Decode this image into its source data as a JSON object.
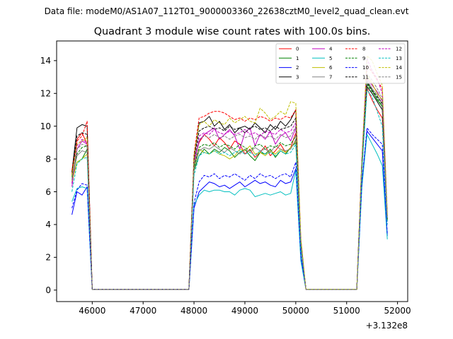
{
  "suptitle": "Data file: modeM0/AS1A07_112T01_9000003360_22638cztM0_level2_quad_clean.evt",
  "chart_data": {
    "type": "line",
    "title": "Quadrant 3 module wise count rates with 100.0s bins.",
    "xlabel": "",
    "ylabel": "",
    "x_offset_label": "+3.132e8",
    "x_ticks": [
      46000,
      47000,
      48000,
      49000,
      50000,
      51000,
      52000
    ],
    "y_ticks": [
      0,
      2,
      4,
      6,
      8,
      10,
      12,
      14
    ],
    "xlim": [
      45300,
      52200
    ],
    "ylim": [
      -0.7,
      15.2
    ],
    "grid": false,
    "legend_position": "top-right",
    "legend_columns": 4,
    "x": [
      45600,
      45700,
      45800,
      45900,
      46000,
      46100,
      46200,
      46300,
      46400,
      46500,
      46600,
      46700,
      46800,
      46900,
      47000,
      47100,
      47200,
      47300,
      47400,
      47500,
      47600,
      47700,
      47800,
      47900,
      48000,
      48100,
      48200,
      48300,
      48400,
      48500,
      48600,
      48700,
      48800,
      48900,
      49000,
      49100,
      49200,
      49300,
      49400,
      49500,
      49600,
      49700,
      49800,
      49900,
      50000,
      50100,
      50200,
      50300,
      50400,
      50500,
      50600,
      50700,
      50800,
      50900,
      51000,
      51100,
      51200,
      51300,
      51400,
      51500,
      51600,
      51700,
      51800
    ],
    "series": [
      {
        "name": "0",
        "color": "#ff0000",
        "dash": false,
        "values": [
          7.1,
          9.2,
          9.6,
          8.9,
          0.05,
          0.05,
          0.05,
          0.05,
          0.05,
          0.05,
          0.05,
          0.05,
          0.05,
          0.05,
          0.05,
          0.05,
          0.05,
          0.05,
          0.05,
          0.05,
          0.05,
          0.05,
          0.05,
          0.05,
          7.9,
          9.0,
          9.5,
          9.2,
          8.8,
          9.3,
          9.0,
          8.6,
          9.1,
          8.9,
          8.3,
          8.6,
          8.1,
          8.4,
          8.8,
          8.2,
          8.5,
          8.9,
          8.4,
          8.7,
          9.6,
          2.7,
          0.05,
          0.05,
          0.05,
          0.05,
          0.05,
          0.05,
          0.05,
          0.05,
          0.05,
          0.05,
          0.05,
          7.8,
          12.3,
          11.6,
          11.0,
          10.5,
          4.3
        ]
      },
      {
        "name": "1",
        "color": "#008000",
        "dash": false,
        "values": [
          6.7,
          7.8,
          8.0,
          8.6,
          0.05,
          0.05,
          0.05,
          0.05,
          0.05,
          0.05,
          0.05,
          0.05,
          0.05,
          0.05,
          0.05,
          0.05,
          0.05,
          0.05,
          0.05,
          0.05,
          0.05,
          0.05,
          0.05,
          0.05,
          7.3,
          8.2,
          8.6,
          8.3,
          8.6,
          8.4,
          8.7,
          8.5,
          8.1,
          8.4,
          8.6,
          8.2,
          7.9,
          8.4,
          8.3,
          8.6,
          8.1,
          8.5,
          8.3,
          8.7,
          9.0,
          2.6,
          0.05,
          0.05,
          0.05,
          0.05,
          0.05,
          0.05,
          0.05,
          0.05,
          0.05,
          0.05,
          0.05,
          7.3,
          12.6,
          12.2,
          11.6,
          11.2,
          4.2
        ]
      },
      {
        "name": "2",
        "color": "#0000ff",
        "dash": false,
        "values": [
          4.6,
          6.0,
          5.8,
          6.3,
          0.05,
          0.05,
          0.05,
          0.05,
          0.05,
          0.05,
          0.05,
          0.05,
          0.05,
          0.05,
          0.05,
          0.05,
          0.05,
          0.05,
          0.05,
          0.05,
          0.05,
          0.05,
          0.05,
          0.05,
          5.0,
          6.0,
          6.3,
          6.6,
          6.5,
          6.3,
          6.4,
          6.2,
          6.4,
          6.6,
          6.3,
          6.5,
          6.7,
          6.5,
          6.6,
          6.4,
          6.3,
          6.7,
          6.5,
          6.6,
          7.4,
          2.0,
          0.05,
          0.05,
          0.05,
          0.05,
          0.05,
          0.05,
          0.05,
          0.05,
          0.05,
          0.05,
          0.05,
          6.5,
          9.7,
          9.3,
          8.9,
          8.5,
          3.3
        ]
      },
      {
        "name": "3",
        "color": "#000000",
        "dash": false,
        "values": [
          7.2,
          9.9,
          10.1,
          10.0,
          0.05,
          0.05,
          0.05,
          0.05,
          0.05,
          0.05,
          0.05,
          0.05,
          0.05,
          0.05,
          0.05,
          0.05,
          0.05,
          0.05,
          0.05,
          0.05,
          0.05,
          0.05,
          0.05,
          0.05,
          8.1,
          10.2,
          10.3,
          10.6,
          10.0,
          10.3,
          9.8,
          10.1,
          9.6,
          9.9,
          10.0,
          9.8,
          10.2,
          9.9,
          9.6,
          10.1,
          9.8,
          10.3,
          10.0,
          10.4,
          11.0,
          3.0,
          0.05,
          0.05,
          0.05,
          0.05,
          0.05,
          0.05,
          0.05,
          0.05,
          0.05,
          0.05,
          0.05,
          8.0,
          12.4,
          12.0,
          11.5,
          11.0,
          4.5
        ]
      },
      {
        "name": "4",
        "color": "#c000c0",
        "dash": false,
        "values": [
          6.3,
          8.6,
          9.1,
          8.9,
          0.05,
          0.05,
          0.05,
          0.05,
          0.05,
          0.05,
          0.05,
          0.05,
          0.05,
          0.05,
          0.05,
          0.05,
          0.05,
          0.05,
          0.05,
          0.05,
          0.05,
          0.05,
          0.05,
          0.05,
          7.6,
          9.1,
          9.5,
          9.7,
          9.9,
          9.2,
          9.5,
          9.8,
          9.4,
          8.6,
          9.6,
          9.9,
          8.8,
          9.5,
          9.2,
          9.7,
          8.9,
          9.4,
          9.6,
          9.1,
          9.9,
          2.8,
          0.05,
          0.05,
          0.05,
          0.05,
          0.05,
          0.05,
          0.05,
          0.05,
          0.05,
          0.05,
          0.05,
          7.9,
          12.9,
          12.5,
          12.1,
          11.5,
          4.4
        ]
      },
      {
        "name": "5",
        "color": "#00bfbf",
        "dash": false,
        "values": [
          5.4,
          6.2,
          6.3,
          6.2,
          0.05,
          0.05,
          0.05,
          0.05,
          0.05,
          0.05,
          0.05,
          0.05,
          0.05,
          0.05,
          0.05,
          0.05,
          0.05,
          0.05,
          0.05,
          0.05,
          0.05,
          0.05,
          0.05,
          0.05,
          5.2,
          5.8,
          6.1,
          6.0,
          6.1,
          6.1,
          6.0,
          6.0,
          5.8,
          6.1,
          6.2,
          6.1,
          5.7,
          5.8,
          5.9,
          5.8,
          5.9,
          6.0,
          5.8,
          5.9,
          7.3,
          1.8,
          0.05,
          0.05,
          0.05,
          0.05,
          0.05,
          0.05,
          0.05,
          0.05,
          0.05,
          0.05,
          0.05,
          6.3,
          9.5,
          8.9,
          8.3,
          7.6,
          3.1
        ]
      },
      {
        "name": "6",
        "color": "#bfbf00",
        "dash": false,
        "values": [
          6.6,
          7.8,
          8.0,
          8.3,
          0.05,
          0.05,
          0.05,
          0.05,
          0.05,
          0.05,
          0.05,
          0.05,
          0.05,
          0.05,
          0.05,
          0.05,
          0.05,
          0.05,
          0.05,
          0.05,
          0.05,
          0.05,
          0.05,
          0.05,
          7.6,
          8.6,
          8.4,
          8.3,
          8.5,
          8.3,
          8.2,
          8.0,
          8.2,
          8.6,
          8.5,
          8.8,
          8.3,
          8.4,
          8.2,
          8.5,
          8.3,
          8.6,
          8.4,
          8.7,
          9.1,
          2.7,
          0.05,
          0.05,
          0.05,
          0.05,
          0.05,
          0.05,
          0.05,
          0.05,
          0.05,
          0.05,
          0.05,
          7.5,
          13.1,
          12.6,
          12.0,
          11.6,
          4.3
        ]
      },
      {
        "name": "7",
        "color": "#808080",
        "dash": false,
        "values": [
          6.8,
          8.2,
          8.5,
          8.4,
          0.05,
          0.05,
          0.05,
          0.05,
          0.05,
          0.05,
          0.05,
          0.05,
          0.05,
          0.05,
          0.05,
          0.05,
          0.05,
          0.05,
          0.05,
          0.05,
          0.05,
          0.05,
          0.05,
          0.05,
          7.4,
          8.5,
          8.7,
          8.6,
          8.8,
          8.6,
          8.4,
          8.7,
          8.5,
          8.3,
          8.6,
          8.4,
          8.7,
          8.5,
          8.6,
          8.4,
          8.8,
          8.6,
          8.5,
          8.6,
          9.2,
          2.7,
          0.05,
          0.05,
          0.05,
          0.05,
          0.05,
          0.05,
          0.05,
          0.05,
          0.05,
          0.05,
          0.05,
          7.7,
          12.8,
          12.3,
          11.9,
          11.3,
          4.3
        ]
      },
      {
        "name": "8",
        "color": "#ff0000",
        "dash": true,
        "values": [
          7.3,
          9.1,
          9.4,
          10.3,
          0.05,
          0.05,
          0.05,
          0.05,
          0.05,
          0.05,
          0.05,
          0.05,
          0.05,
          0.05,
          0.05,
          0.05,
          0.05,
          0.05,
          0.05,
          0.05,
          0.05,
          0.05,
          0.05,
          0.05,
          8.3,
          10.5,
          10.6,
          10.8,
          10.9,
          10.9,
          10.8,
          10.6,
          10.4,
          10.5,
          10.3,
          10.5,
          10.4,
          10.6,
          10.5,
          10.3,
          10.5,
          10.4,
          10.6,
          10.5,
          11.0,
          3.1,
          0.05,
          0.05,
          0.05,
          0.05,
          0.05,
          0.05,
          0.05,
          0.05,
          0.05,
          0.05,
          0.05,
          8.0,
          13.7,
          13.3,
          12.8,
          12.3,
          4.6
        ]
      },
      {
        "name": "9",
        "color": "#008000",
        "dash": true,
        "values": [
          6.9,
          8.3,
          8.7,
          8.8,
          0.05,
          0.05,
          0.05,
          0.05,
          0.05,
          0.05,
          0.05,
          0.05,
          0.05,
          0.05,
          0.05,
          0.05,
          0.05,
          0.05,
          0.05,
          0.05,
          0.05,
          0.05,
          0.05,
          0.05,
          7.5,
          8.7,
          8.9,
          8.8,
          9.0,
          8.7,
          8.9,
          8.8,
          8.6,
          8.9,
          8.7,
          8.5,
          8.8,
          8.9,
          8.6,
          8.8,
          8.7,
          9.0,
          8.8,
          8.9,
          9.4,
          2.8,
          0.05,
          0.05,
          0.05,
          0.05,
          0.05,
          0.05,
          0.05,
          0.05,
          0.05,
          0.05,
          0.05,
          7.7,
          12.5,
          12.1,
          11.7,
          11.2,
          4.3
        ]
      },
      {
        "name": "10",
        "color": "#0000ff",
        "dash": true,
        "values": [
          5.0,
          6.1,
          6.5,
          6.4,
          0.05,
          0.05,
          0.05,
          0.05,
          0.05,
          0.05,
          0.05,
          0.05,
          0.05,
          0.05,
          0.05,
          0.05,
          0.05,
          0.05,
          0.05,
          0.05,
          0.05,
          0.05,
          0.05,
          0.05,
          5.3,
          6.6,
          7.0,
          6.9,
          7.1,
          6.8,
          7.0,
          6.9,
          7.1,
          6.9,
          6.7,
          7.0,
          6.8,
          7.1,
          6.9,
          7.0,
          6.8,
          7.0,
          7.1,
          6.9,
          7.8,
          2.1,
          0.05,
          0.05,
          0.05,
          0.05,
          0.05,
          0.05,
          0.05,
          0.05,
          0.05,
          0.05,
          0.05,
          6.6,
          9.9,
          9.5,
          9.2,
          8.9,
          3.4
        ]
      },
      {
        "name": "11",
        "color": "#000000",
        "dash": true,
        "values": [
          7.0,
          9.4,
          9.6,
          9.5,
          0.05,
          0.05,
          0.05,
          0.05,
          0.05,
          0.05,
          0.05,
          0.05,
          0.05,
          0.05,
          0.05,
          0.05,
          0.05,
          0.05,
          0.05,
          0.05,
          0.05,
          0.05,
          0.05,
          0.05,
          8.0,
          9.7,
          9.9,
          10.0,
          9.8,
          9.9,
          9.7,
          10.0,
          9.8,
          9.9,
          9.6,
          9.9,
          10.0,
          9.8,
          9.9,
          9.7,
          10.0,
          9.8,
          9.9,
          10.0,
          10.5,
          2.9,
          0.05,
          0.05,
          0.05,
          0.05,
          0.05,
          0.05,
          0.05,
          0.05,
          0.05,
          0.05,
          0.05,
          7.9,
          12.7,
          12.2,
          11.8,
          11.4,
          4.4
        ]
      },
      {
        "name": "12",
        "color": "#c000c0",
        "dash": true,
        "values": [
          6.5,
          8.8,
          9.2,
          9.0,
          0.05,
          0.05,
          0.05,
          0.05,
          0.05,
          0.05,
          0.05,
          0.05,
          0.05,
          0.05,
          0.05,
          0.05,
          0.05,
          0.05,
          0.05,
          0.05,
          0.05,
          0.05,
          0.05,
          0.05,
          7.8,
          9.4,
          9.6,
          9.5,
          9.8,
          9.6,
          9.5,
          9.7,
          9.5,
          9.6,
          9.8,
          9.5,
          9.6,
          9.4,
          9.7,
          9.6,
          9.5,
          9.8,
          9.6,
          9.7,
          10.2,
          2.9,
          0.05,
          0.05,
          0.05,
          0.05,
          0.05,
          0.05,
          0.05,
          0.05,
          0.05,
          0.05,
          0.05,
          8.0,
          14.1,
          13.4,
          12.9,
          12.0,
          4.5
        ]
      },
      {
        "name": "13",
        "color": "#00bfbf",
        "dash": true,
        "values": [
          6.0,
          7.7,
          8.0,
          8.1,
          0.05,
          0.05,
          0.05,
          0.05,
          0.05,
          0.05,
          0.05,
          0.05,
          0.05,
          0.05,
          0.05,
          0.05,
          0.05,
          0.05,
          0.05,
          0.05,
          0.05,
          0.05,
          0.05,
          0.05,
          7.0,
          8.2,
          8.4,
          8.3,
          8.5,
          8.3,
          8.4,
          8.2,
          8.4,
          8.5,
          8.3,
          8.4,
          8.2,
          8.5,
          8.3,
          8.4,
          8.2,
          8.5,
          8.3,
          8.4,
          8.9,
          2.6,
          0.05,
          0.05,
          0.05,
          0.05,
          0.05,
          0.05,
          0.05,
          0.05,
          0.05,
          0.05,
          0.05,
          7.3,
          12.2,
          11.8,
          10.9,
          10.0,
          4.0
        ]
      },
      {
        "name": "14",
        "color": "#bfbf00",
        "dash": true,
        "values": [
          7.0,
          8.9,
          9.1,
          9.3,
          0.05,
          0.05,
          0.05,
          0.05,
          0.05,
          0.05,
          0.05,
          0.05,
          0.05,
          0.05,
          0.05,
          0.05,
          0.05,
          0.05,
          0.05,
          0.05,
          0.05,
          0.05,
          0.05,
          0.05,
          8.2,
          10.1,
          10.3,
          10.0,
          10.4,
          10.2,
          10.1,
          10.5,
          10.2,
          10.4,
          10.6,
          10.3,
          10.2,
          11.1,
          10.8,
          10.4,
          10.6,
          10.9,
          10.7,
          11.5,
          11.4,
          3.2,
          0.05,
          0.05,
          0.05,
          0.05,
          0.05,
          0.05,
          0.05,
          0.05,
          0.05,
          0.05,
          0.05,
          8.1,
          14.3,
          14.0,
          13.2,
          12.5,
          4.6
        ]
      },
      {
        "name": "15",
        "color": "#808080",
        "dash": true,
        "values": [
          6.7,
          8.6,
          8.9,
          8.8,
          0.05,
          0.05,
          0.05,
          0.05,
          0.05,
          0.05,
          0.05,
          0.05,
          0.05,
          0.05,
          0.05,
          0.05,
          0.05,
          0.05,
          0.05,
          0.05,
          0.05,
          0.05,
          0.05,
          0.05,
          7.7,
          9.2,
          9.4,
          9.3,
          9.5,
          9.3,
          9.4,
          9.2,
          9.4,
          9.5,
          9.3,
          9.4,
          9.2,
          9.5,
          9.3,
          9.4,
          9.2,
          9.5,
          9.3,
          9.4,
          10.0,
          2.9,
          0.05,
          0.05,
          0.05,
          0.05,
          0.05,
          0.05,
          0.05,
          0.05,
          0.05,
          0.05,
          0.05,
          7.8,
          13.2,
          12.8,
          12.3,
          11.7,
          4.4
        ]
      }
    ]
  }
}
